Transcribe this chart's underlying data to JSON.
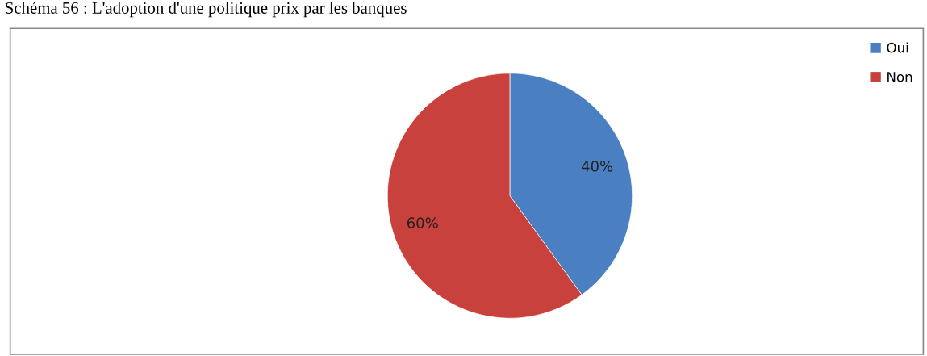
{
  "chart_data": {
    "type": "pie",
    "title": "Schéma 56 : L'adoption d'une politique prix par les banques",
    "categories": [
      "Oui",
      "Non"
    ],
    "values": [
      40,
      60
    ],
    "colors": [
      "#4a7fc1",
      "#c9413d"
    ],
    "value_labels": [
      "40%",
      "60%"
    ],
    "legend": "top right"
  }
}
